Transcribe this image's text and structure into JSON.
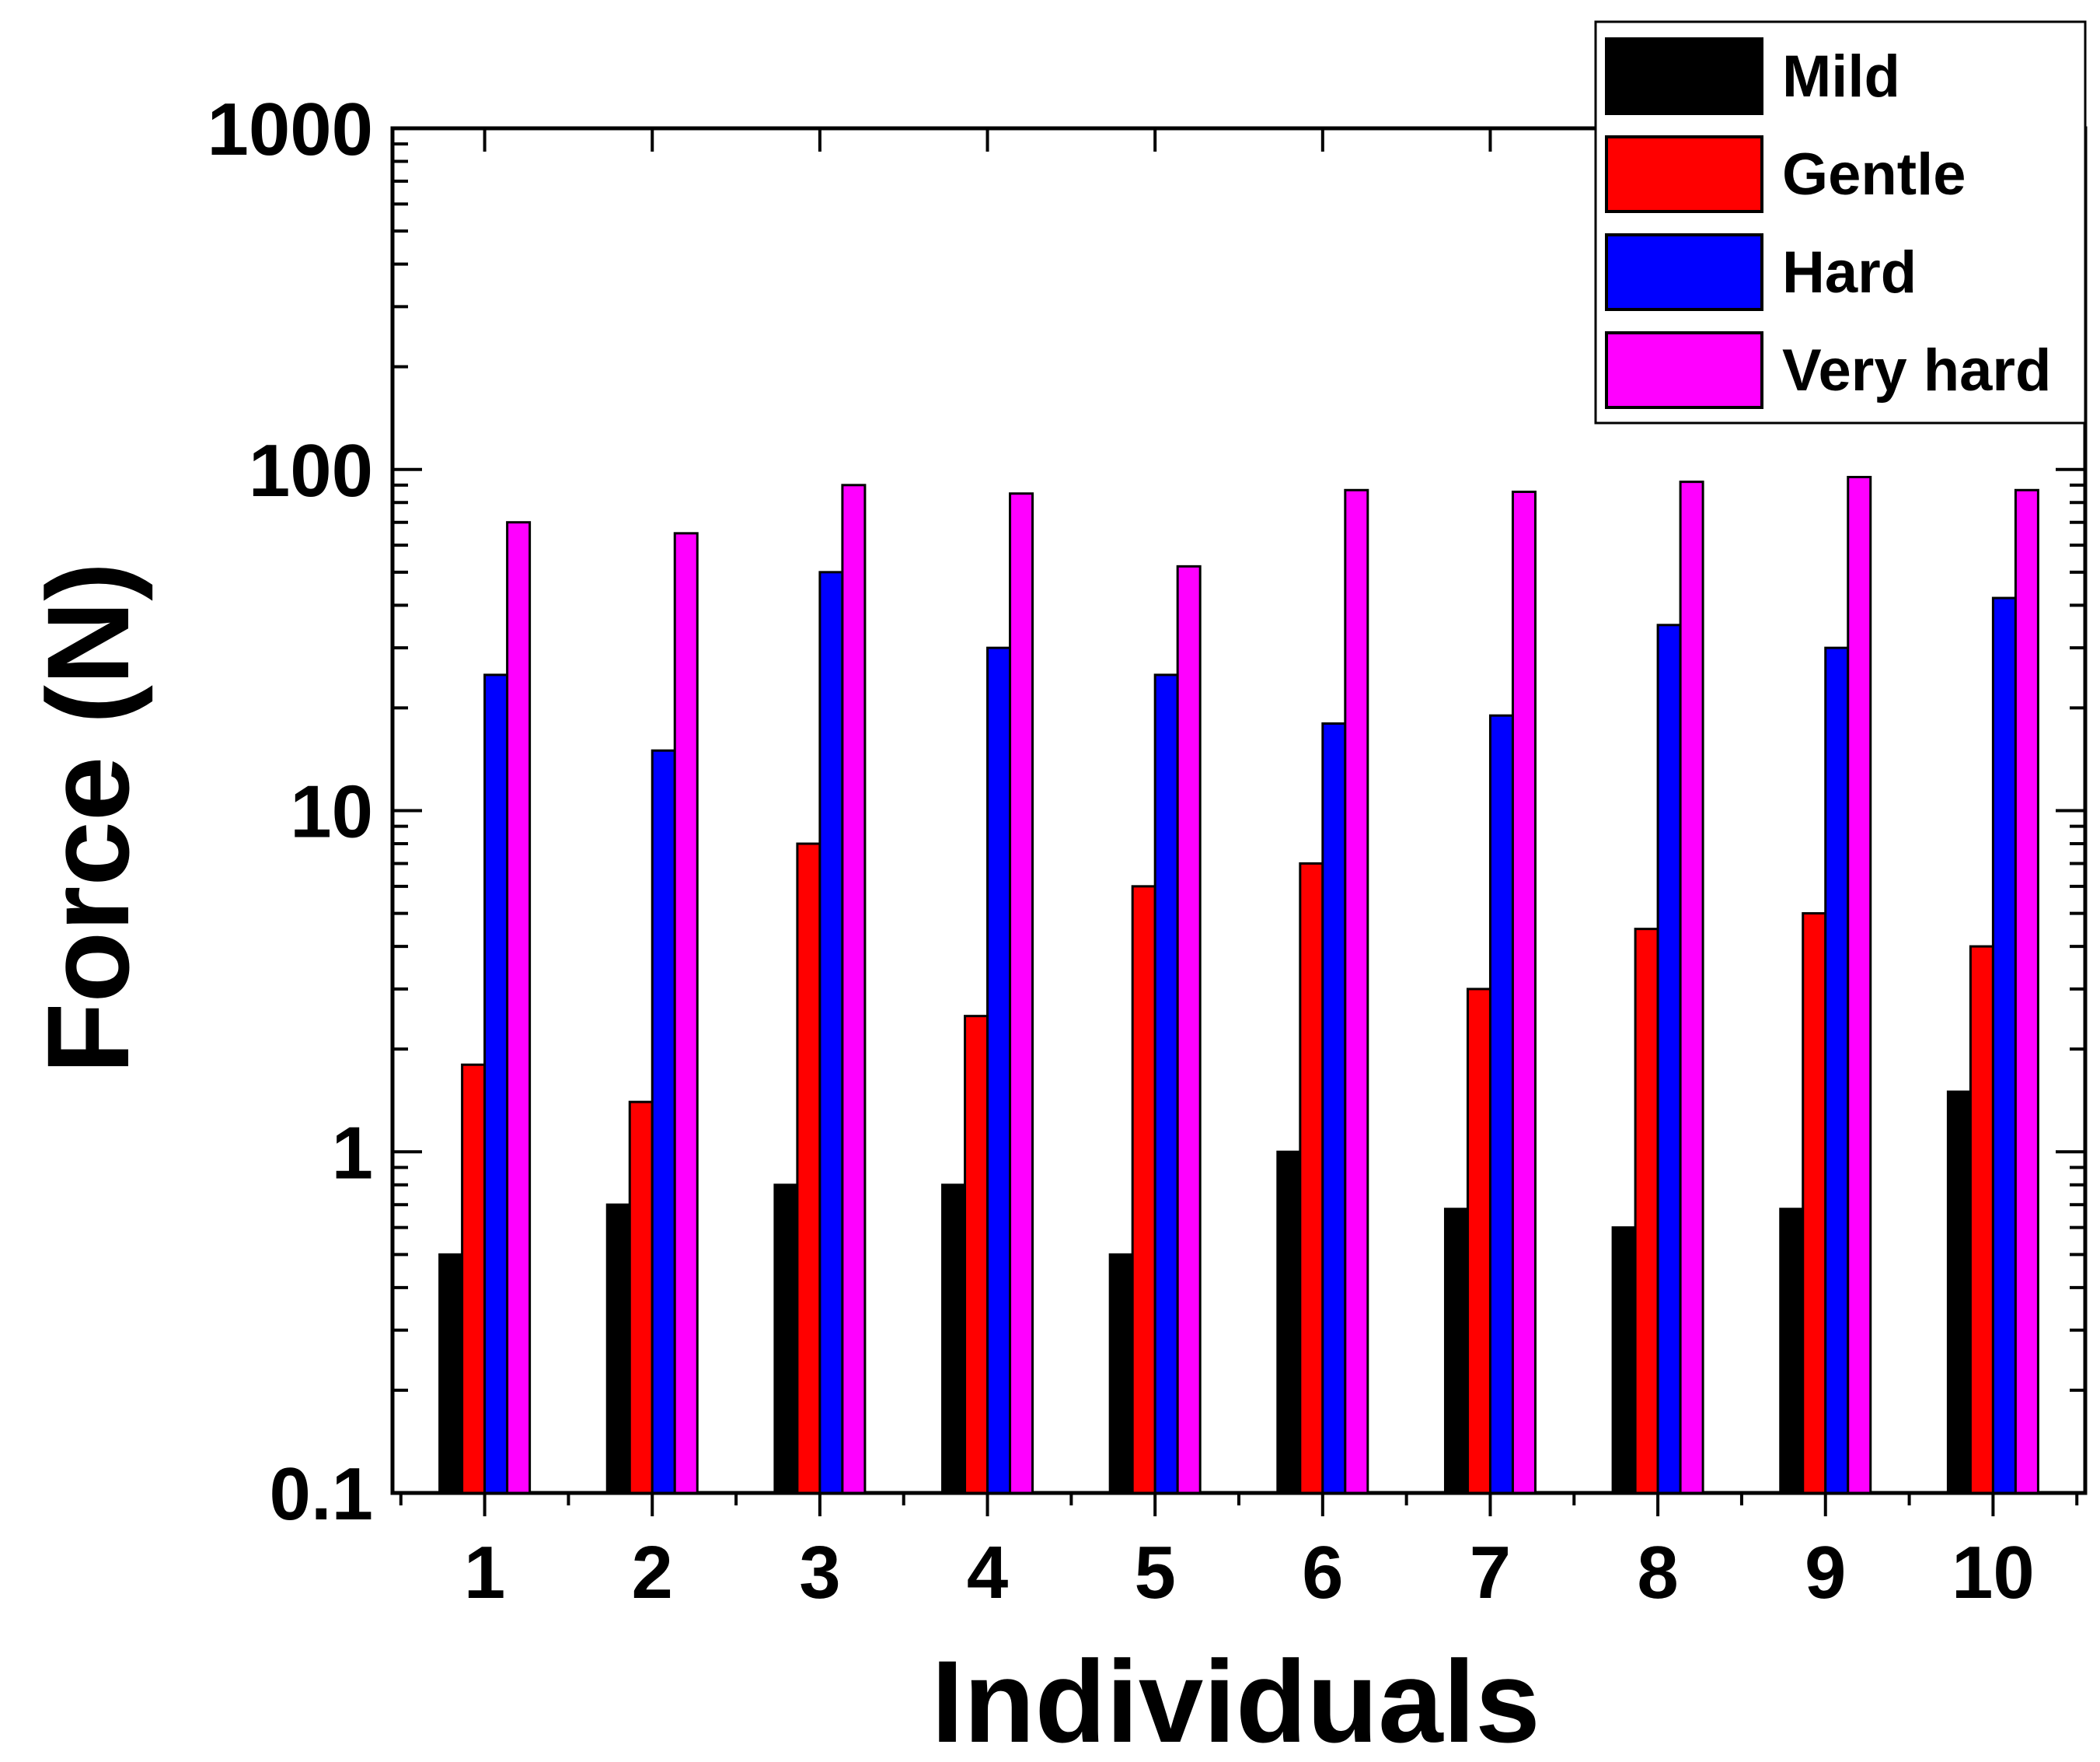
{
  "chart_data": {
    "type": "bar",
    "title": "",
    "xlabel": "Individuals",
    "ylabel": "Force (N)",
    "yscale": "log",
    "ylim": [
      0.1,
      1000
    ],
    "yticks": [
      0.1,
      1,
      10,
      100,
      1000
    ],
    "ytick_labels": [
      "0.1",
      "1",
      "10",
      "100",
      "1000"
    ],
    "categories": [
      "1",
      "2",
      "3",
      "4",
      "5",
      "6",
      "7",
      "8",
      "9",
      "10"
    ],
    "legend_position": "top-right",
    "series": [
      {
        "name": "Mild",
        "color": "#000000",
        "values": [
          0.5,
          0.7,
          0.8,
          0.8,
          0.5,
          1.0,
          0.68,
          0.6,
          0.68,
          1.5
        ]
      },
      {
        "name": "Gentle",
        "color": "#ff0000",
        "values": [
          1.8,
          1.4,
          8,
          2.5,
          6,
          7,
          3,
          4.5,
          5,
          4
        ]
      },
      {
        "name": "Hard",
        "color": "#0000ff",
        "values": [
          25,
          15,
          50,
          30,
          25,
          18,
          19,
          35,
          30,
          42
        ]
      },
      {
        "name": "Very hard",
        "color": "#ff00ff",
        "values": [
          70,
          65,
          90,
          85,
          52,
          87,
          86,
          92,
          95,
          87
        ]
      }
    ]
  }
}
